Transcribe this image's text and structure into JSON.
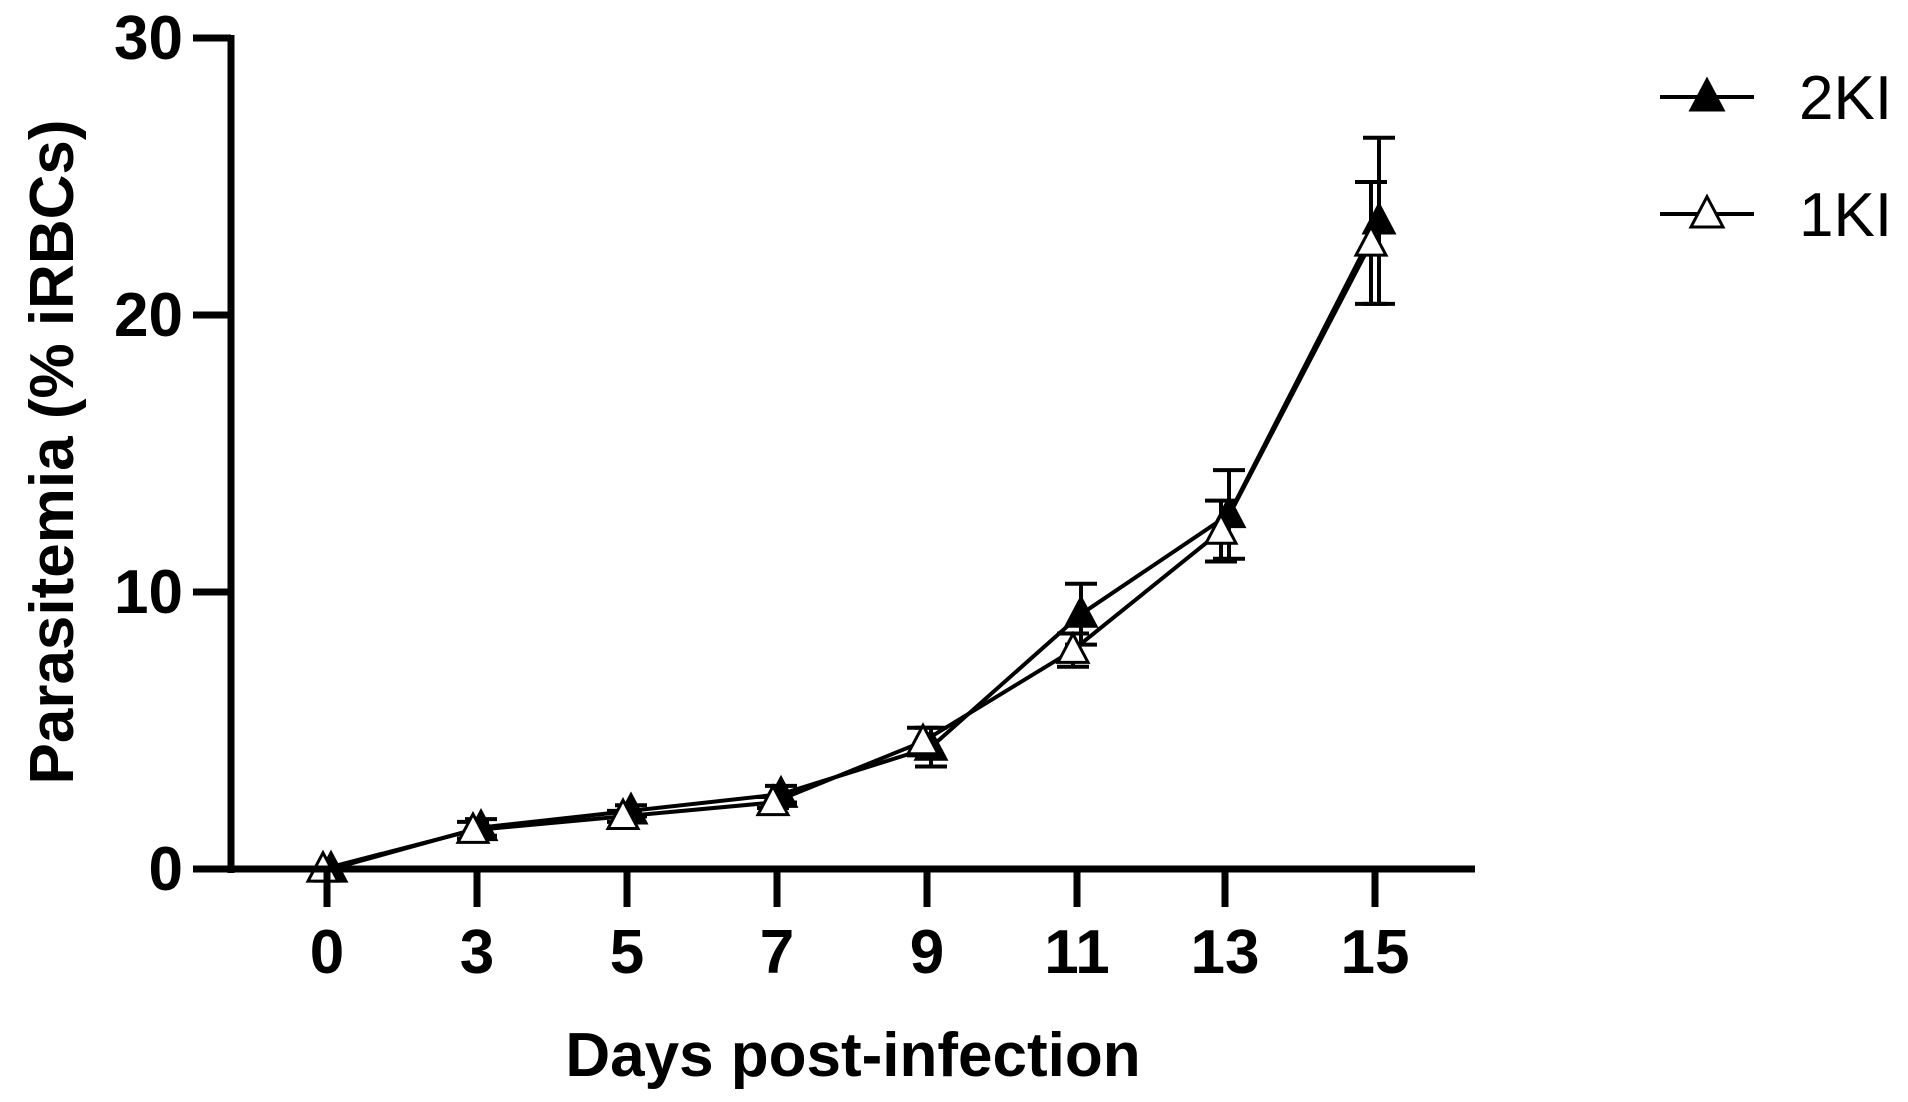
{
  "chart_data": {
    "type": "line",
    "xlabel": "Days post-infection",
    "ylabel": "Parasitemia (% iRBCs)",
    "x": [
      0,
      3,
      5,
      7,
      9,
      11,
      13,
      15
    ],
    "x_tick_labels": [
      "0",
      "3",
      "5",
      "7",
      "9",
      "11",
      "13",
      "15"
    ],
    "y_ticks": [
      0,
      10,
      20,
      30
    ],
    "y_tick_labels": [
      "0",
      "10",
      "20",
      "30"
    ],
    "ylim": [
      0,
      30
    ],
    "grid": false,
    "legend_position": "top-right",
    "series": [
      {
        "name": "2KI",
        "marker": "filled-triangle",
        "color": "#000000",
        "values": [
          0,
          1.5,
          2.1,
          2.7,
          4.4,
          9.2,
          12.8,
          23.4
        ],
        "error": [
          0,
          0.3,
          0.2,
          0.3,
          0.7,
          1.1,
          1.6,
          3.0
        ]
      },
      {
        "name": "1KI",
        "marker": "open-triangle",
        "color": "#000000",
        "values": [
          0,
          1.4,
          1.9,
          2.4,
          4.6,
          7.9,
          12.2,
          22.6
        ],
        "error": [
          0,
          0.3,
          0.2,
          0.2,
          0.5,
          0.6,
          1.1,
          2.2
        ]
      }
    ]
  }
}
